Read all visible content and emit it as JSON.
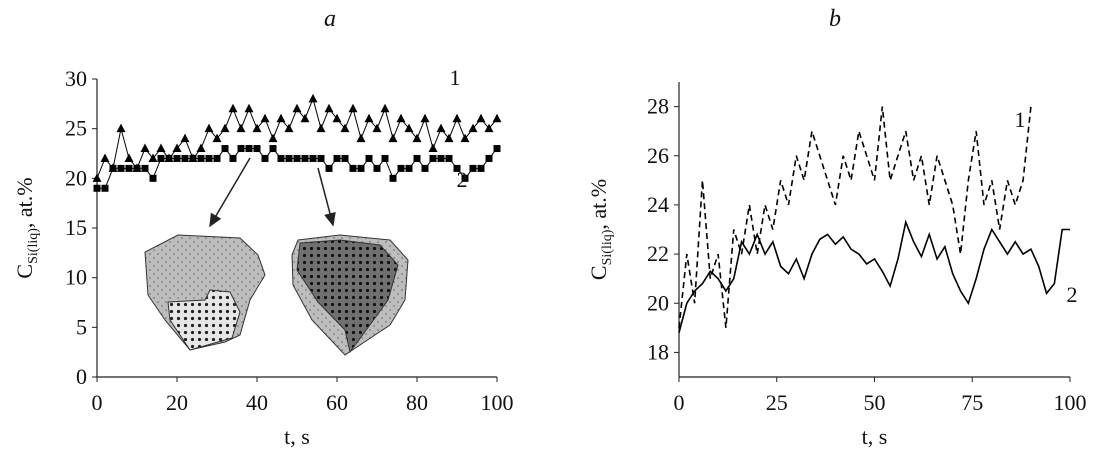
{
  "chart_data": [
    {
      "type": "scatter-line",
      "title": "a",
      "xlabel": "t, s",
      "ylabel": {
        "main": "C",
        "sub": "Si(liq)",
        "rest": ", at.%"
      },
      "x": [
        0,
        2,
        4,
        6,
        8,
        10,
        12,
        14,
        16,
        18,
        20,
        22,
        24,
        26,
        28,
        30,
        32,
        34,
        36,
        38,
        40,
        42,
        44,
        46,
        48,
        50,
        52,
        54,
        56,
        58,
        60,
        62,
        64,
        66,
        68,
        70,
        72,
        74,
        76,
        78,
        80,
        82,
        84,
        86,
        88,
        90,
        92,
        94,
        96,
        98,
        100
      ],
      "xlim": [
        0,
        100
      ],
      "xticks": [
        0,
        20,
        40,
        60,
        80,
        100
      ],
      "ylim": [
        0,
        30
      ],
      "yticks": [
        0,
        5,
        10,
        15,
        20,
        25,
        30
      ],
      "series": [
        {
          "name": "1",
          "color": "#000000",
          "marker": "triangle",
          "values": [
            20,
            22,
            21,
            25,
            22,
            21,
            23,
            22,
            23,
            22,
            23,
            24,
            22,
            23,
            25,
            24,
            25,
            27,
            25,
            27,
            25,
            26,
            24,
            26,
            25,
            27,
            26,
            28,
            25,
            27,
            26,
            25,
            27,
            24,
            26,
            25,
            27,
            24,
            26,
            25,
            24,
            26,
            23,
            25,
            24,
            26,
            24,
            25,
            26,
            25,
            26
          ]
        },
        {
          "name": "2",
          "color": "#000000",
          "marker": "square",
          "values": [
            19,
            19,
            21,
            21,
            21,
            21,
            21,
            20,
            22,
            22,
            22,
            22,
            22,
            22,
            22,
            22,
            23,
            22,
            23,
            23,
            23,
            22,
            23,
            22,
            22,
            22,
            22,
            22,
            22,
            21,
            22,
            22,
            21,
            21,
            22,
            21,
            22,
            20,
            21,
            21,
            22,
            21,
            22,
            22,
            22,
            21,
            20,
            21,
            21,
            22,
            23
          ]
        }
      ]
    },
    {
      "type": "line",
      "title": "b",
      "xlabel": "t, s",
      "ylabel": {
        "main": "C",
        "sub": "Si(liq)",
        "rest": ", at.%"
      },
      "x": [
        0,
        2,
        4,
        6,
        8,
        10,
        12,
        14,
        16,
        18,
        20,
        22,
        24,
        26,
        28,
        30,
        32,
        34,
        36,
        38,
        40,
        42,
        44,
        46,
        48,
        50,
        52,
        54,
        56,
        58,
        60,
        62,
        64,
        66,
        68,
        70,
        72,
        74,
        76,
        78,
        80,
        82,
        84,
        86,
        88,
        90,
        92,
        94,
        96,
        98,
        100
      ],
      "xlim": [
        0,
        100
      ],
      "xticks": [
        0,
        25,
        50,
        75,
        100
      ],
      "ylim": [
        17,
        29
      ],
      "yticks": [
        18,
        20,
        22,
        24,
        26,
        28
      ],
      "series": [
        {
          "name": "1",
          "color": "#000000",
          "dash": true,
          "values": [
            19,
            22,
            20,
            25,
            21,
            22,
            19,
            23,
            22,
            24,
            22,
            24,
            23,
            25,
            24,
            26,
            25,
            27,
            26,
            25,
            24,
            26,
            25,
            27,
            26,
            25,
            28,
            25,
            26,
            27,
            25,
            26,
            24,
            26,
            25,
            24,
            22,
            25,
            27,
            24,
            25,
            23,
            25,
            24,
            25,
            28,
            null,
            null,
            null,
            null,
            null
          ]
        },
        {
          "name": "2",
          "color": "#000000",
          "dash": false,
          "values": [
            18.8,
            20,
            20.5,
            20.8,
            21.3,
            21,
            20.5,
            21,
            22.5,
            22,
            22.8,
            22,
            22.5,
            21.5,
            21.2,
            21.8,
            21,
            22,
            22.6,
            22.8,
            22.4,
            22.7,
            22.2,
            22,
            21.6,
            21.8,
            21.3,
            20.7,
            21.8,
            23.3,
            22.5,
            21.9,
            22.8,
            21.8,
            22.3,
            21.2,
            20.5,
            20,
            21,
            22.2,
            23,
            22.5,
            22,
            22.5,
            22,
            22.2,
            21.5,
            20.4,
            20.8,
            23,
            23
          ]
        }
      ]
    }
  ]
}
